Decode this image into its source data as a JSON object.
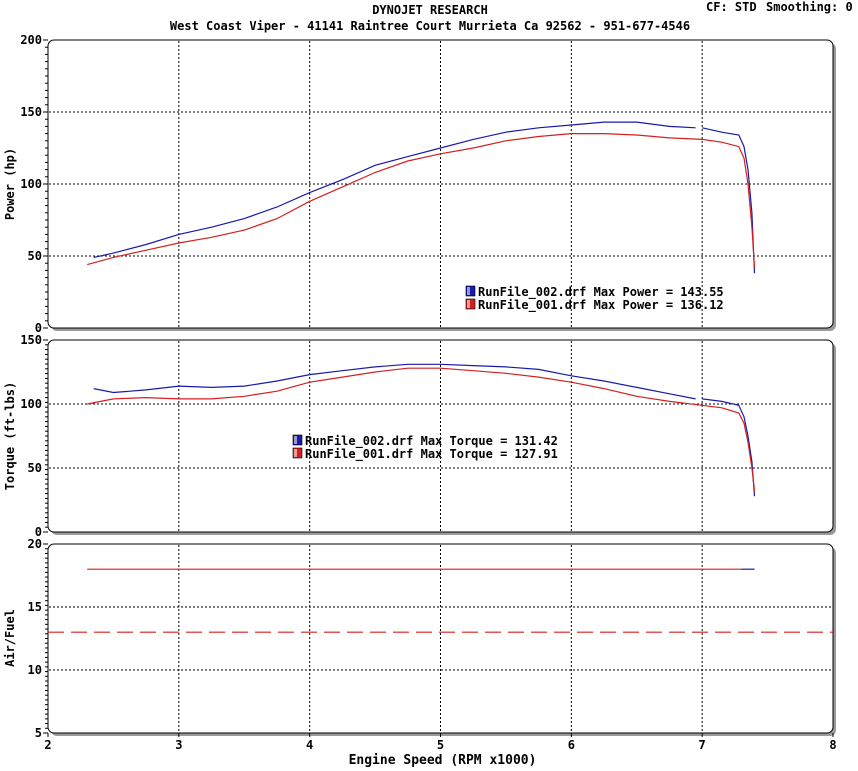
{
  "header": {
    "title": "DYNOJET RESEARCH",
    "subtitle": "West Coast Viper - 41141 Raintree Court Murrieta Ca 92562 - 951-677-4546",
    "cf_label": "CF: STD",
    "smoothing_label": "Smoothing: 0"
  },
  "colors": {
    "run_002": "#1a1aa8",
    "run_001": "#d42020",
    "grid": "#000000",
    "panel_border": "#000000"
  },
  "chart_data": [
    {
      "type": "line",
      "ylabel": "Power (hp)",
      "xlabel": "",
      "xlim": [
        2,
        8
      ],
      "ylim": [
        0,
        200
      ],
      "yticks": [
        0,
        50,
        100,
        150,
        200
      ],
      "grid": true,
      "legend_placement": "bottom-center",
      "legend": [
        "RunFile_002.drf Max Power = 143.55",
        "RunFile_001.drf Max Power = 136.12"
      ],
      "series": [
        {
          "name": "RunFile_002.drf",
          "color_key": "run_002",
          "segments": [
            [
              [
                2.35,
                49
              ],
              [
                2.5,
                52
              ],
              [
                2.75,
                58
              ],
              [
                3.0,
                65
              ],
              [
                3.25,
                70
              ],
              [
                3.5,
                76
              ],
              [
                3.75,
                84
              ],
              [
                4.0,
                94
              ],
              [
                4.25,
                103
              ],
              [
                4.5,
                113
              ],
              [
                4.75,
                119
              ],
              [
                5.0,
                125
              ],
              [
                5.25,
                131
              ],
              [
                5.5,
                136
              ],
              [
                5.75,
                139
              ],
              [
                6.0,
                141
              ],
              [
                6.25,
                143
              ],
              [
                6.5,
                143
              ],
              [
                6.75,
                140
              ],
              [
                6.95,
                139
              ]
            ],
            [
              [
                7.0,
                139
              ],
              [
                7.15,
                136
              ],
              [
                7.28,
                134
              ],
              [
                7.32,
                126
              ],
              [
                7.35,
                110
              ],
              [
                7.38,
                80
              ],
              [
                7.4,
                38
              ]
            ]
          ]
        },
        {
          "name": "RunFile_001.drf",
          "color_key": "run_001",
          "segments": [
            [
              [
                2.3,
                44
              ],
              [
                2.5,
                49
              ],
              [
                2.75,
                54
              ],
              [
                3.0,
                59
              ],
              [
                3.25,
                63
              ],
              [
                3.5,
                68
              ],
              [
                3.75,
                76
              ],
              [
                4.0,
                88
              ],
              [
                4.25,
                98
              ],
              [
                4.5,
                108
              ],
              [
                4.75,
                116
              ],
              [
                5.0,
                121
              ],
              [
                5.25,
                125
              ],
              [
                5.5,
                130
              ],
              [
                5.75,
                133
              ],
              [
                6.0,
                135
              ],
              [
                6.25,
                135
              ],
              [
                6.5,
                134
              ],
              [
                6.75,
                132
              ],
              [
                7.0,
                131
              ],
              [
                7.15,
                129
              ],
              [
                7.28,
                126
              ],
              [
                7.32,
                118
              ],
              [
                7.35,
                100
              ],
              [
                7.38,
                70
              ],
              [
                7.4,
                42
              ]
            ]
          ]
        }
      ]
    },
    {
      "type": "line",
      "ylabel": "Torque (ft-lbs)",
      "xlabel": "",
      "xlim": [
        2,
        8
      ],
      "ylim": [
        0,
        150
      ],
      "yticks": [
        0,
        50,
        100,
        150
      ],
      "grid": true,
      "legend_placement": "center",
      "legend": [
        "RunFile_002.drf Max Torque = 131.42",
        "RunFile_001.drf Max Torque = 127.91"
      ],
      "series": [
        {
          "name": "RunFile_002.drf",
          "color_key": "run_002",
          "segments": [
            [
              [
                2.35,
                112
              ],
              [
                2.5,
                109
              ],
              [
                2.75,
                111
              ],
              [
                3.0,
                114
              ],
              [
                3.25,
                113
              ],
              [
                3.5,
                114
              ],
              [
                3.75,
                118
              ],
              [
                4.0,
                123
              ],
              [
                4.25,
                126
              ],
              [
                4.5,
                129
              ],
              [
                4.75,
                131
              ],
              [
                5.0,
                131
              ],
              [
                5.25,
                130
              ],
              [
                5.5,
                129
              ],
              [
                5.75,
                127
              ],
              [
                6.0,
                122
              ],
              [
                6.25,
                118
              ],
              [
                6.5,
                113
              ],
              [
                6.75,
                108
              ],
              [
                6.95,
                104
              ]
            ],
            [
              [
                7.0,
                104
              ],
              [
                7.15,
                102
              ],
              [
                7.28,
                99
              ],
              [
                7.32,
                90
              ],
              [
                7.35,
                75
              ],
              [
                7.38,
                55
              ],
              [
                7.4,
                28
              ]
            ]
          ]
        },
        {
          "name": "RunFile_001.drf",
          "color_key": "run_001",
          "segments": [
            [
              [
                2.3,
                100
              ],
              [
                2.5,
                104
              ],
              [
                2.75,
                105
              ],
              [
                3.0,
                104
              ],
              [
                3.25,
                104
              ],
              [
                3.5,
                106
              ],
              [
                3.75,
                110
              ],
              [
                4.0,
                117
              ],
              [
                4.25,
                121
              ],
              [
                4.5,
                125
              ],
              [
                4.75,
                128
              ],
              [
                5.0,
                128
              ],
              [
                5.25,
                126
              ],
              [
                5.5,
                124
              ],
              [
                5.75,
                121
              ],
              [
                6.0,
                117
              ],
              [
                6.25,
                112
              ],
              [
                6.5,
                106
              ],
              [
                6.75,
                102
              ],
              [
                7.0,
                99
              ],
              [
                7.15,
                97
              ],
              [
                7.28,
                93
              ],
              [
                7.32,
                85
              ],
              [
                7.35,
                70
              ],
              [
                7.38,
                50
              ],
              [
                7.4,
                32
              ]
            ]
          ]
        }
      ]
    },
    {
      "type": "line",
      "ylabel": "Air/Fuel",
      "xlabel": "Engine Speed (RPM x1000)",
      "xlim": [
        2,
        8
      ],
      "ylim": [
        5,
        20
      ],
      "yticks": [
        5,
        10,
        15,
        20
      ],
      "xticks": [
        2,
        3,
        4,
        5,
        6,
        7,
        8
      ],
      "grid": true,
      "series": [
        {
          "name": "RunFile_002.drf",
          "color_key": "run_002",
          "segments": [
            [
              [
                7.3,
                18
              ],
              [
                7.4,
                18
              ]
            ]
          ]
        },
        {
          "name": "RunFile_001.drf",
          "color_key": "run_001",
          "segments": [
            [
              [
                2.3,
                18
              ],
              [
                7.3,
                18
              ]
            ]
          ]
        },
        {
          "name": "",
          "color_key": "run_001",
          "dashed": true,
          "segments": [
            [
              [
                2.0,
                13
              ],
              [
                8.0,
                13
              ]
            ]
          ]
        }
      ]
    }
  ]
}
